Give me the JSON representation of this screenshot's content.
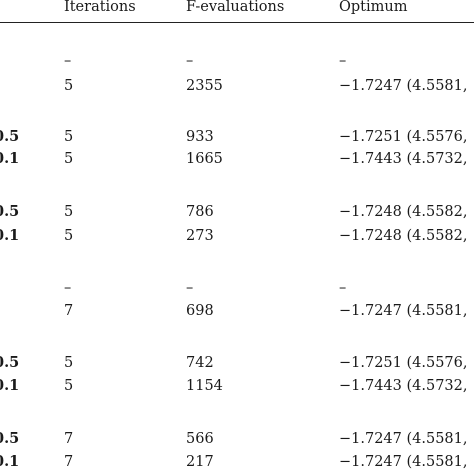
{
  "table": {
    "headers": {
      "iterations": "Iterations",
      "f_evaluations": "F-evaluations",
      "optimum": "Optimum"
    },
    "rows": [
      {
        "param": "",
        "iterations": "–",
        "f_evaluations": "–",
        "optimum": "–"
      },
      {
        "param": "",
        "iterations": "5",
        "f_evaluations": "2355",
        "optimum": "−1.7247 (4.5581,"
      },
      {
        "param": "0.5",
        "iterations": "5",
        "f_evaluations": "933",
        "optimum": "−1.7251 (4.5576,"
      },
      {
        "param": "0.1",
        "iterations": "5",
        "f_evaluations": "1665",
        "optimum": "−1.7443 (4.5732,"
      },
      {
        "param": "0.5",
        "iterations": "5",
        "f_evaluations": "786",
        "optimum": "−1.7248 (4.5582,"
      },
      {
        "param": "0.1",
        "iterations": "5",
        "f_evaluations": "273",
        "optimum": "−1.7248 (4.5582,"
      },
      {
        "param": "",
        "iterations": "–",
        "f_evaluations": "–",
        "optimum": "–"
      },
      {
        "param": "",
        "iterations": "7",
        "f_evaluations": "698",
        "optimum": "−1.7247 (4.5581,"
      },
      {
        "param": "0.5",
        "iterations": "5",
        "f_evaluations": "742",
        "optimum": "−1.7251 (4.5576,"
      },
      {
        "param": "0.1",
        "iterations": "5",
        "f_evaluations": "1154",
        "optimum": "−1.7443 (4.5732,"
      },
      {
        "param": "0.5",
        "iterations": "7",
        "f_evaluations": "566",
        "optimum": "−1.7247 (4.5581,"
      },
      {
        "param": "0.1",
        "iterations": "7",
        "f_evaluations": "217",
        "optimum": "−1.7247 (4.5581,"
      }
    ]
  }
}
